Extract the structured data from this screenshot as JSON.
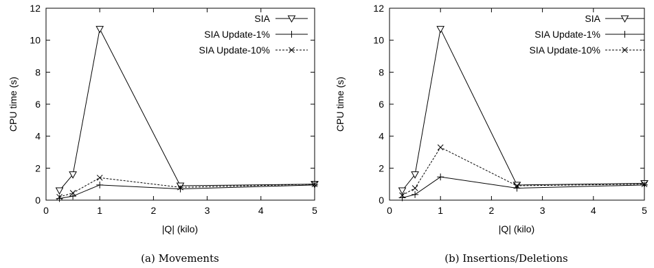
{
  "chart_data": [
    {
      "type": "line",
      "caption": "(a) Movements",
      "xlabel": "|Q| (kilo)",
      "ylabel": "CPU time (s)",
      "xlim": [
        0,
        5
      ],
      "ylim": [
        0,
        12
      ],
      "xticks": [
        "0",
        "1",
        "2",
        "3",
        "4",
        "5"
      ],
      "yticks": [
        "0",
        "2",
        "4",
        "6",
        "8",
        "10",
        "12"
      ],
      "grid": false,
      "legend_position": "top-right",
      "x": [
        0.25,
        0.5,
        1,
        2.5,
        5
      ],
      "series": [
        {
          "name": "SIA",
          "marker": "triangle-down",
          "dash": "solid",
          "values": [
            0.6,
            1.6,
            10.7,
            0.9,
            1.0
          ]
        },
        {
          "name": "SIA Update-1%",
          "marker": "plus",
          "dash": "solid",
          "values": [
            0.1,
            0.25,
            0.95,
            0.7,
            0.95
          ]
        },
        {
          "name": "SIA Update-10%",
          "marker": "cross",
          "dash": "dashed",
          "values": [
            0.2,
            0.45,
            1.4,
            0.8,
            1.0
          ]
        }
      ]
    },
    {
      "type": "line",
      "caption": "(b) Insertions/Deletions",
      "xlabel": "|Q| (kilo)",
      "ylabel": "CPU time (s)",
      "xlim": [
        0,
        5
      ],
      "ylim": [
        0,
        12
      ],
      "xticks": [
        "0",
        "1",
        "2",
        "3",
        "4",
        "5"
      ],
      "yticks": [
        "0",
        "2",
        "4",
        "6",
        "8",
        "10",
        "12"
      ],
      "grid": false,
      "legend_position": "top-right",
      "x": [
        0.25,
        0.5,
        1,
        2.5,
        5
      ],
      "series": [
        {
          "name": "SIA",
          "marker": "triangle-down",
          "dash": "solid",
          "values": [
            0.6,
            1.6,
            10.7,
            0.95,
            1.05
          ]
        },
        {
          "name": "SIA Update-1%",
          "marker": "plus",
          "dash": "solid",
          "values": [
            0.15,
            0.35,
            1.45,
            0.75,
            0.95
          ]
        },
        {
          "name": "SIA Update-10%",
          "marker": "cross",
          "dash": "dashed",
          "values": [
            0.3,
            0.75,
            3.3,
            0.9,
            1.0
          ]
        }
      ]
    }
  ]
}
